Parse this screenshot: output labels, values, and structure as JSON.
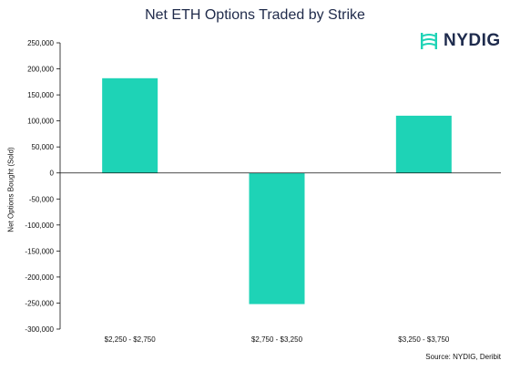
{
  "title": "Net ETH Options Traded by Strike",
  "logo": {
    "text": "NYDIG",
    "icon": "nydig-logo-icon"
  },
  "source": "Source: NYDIG, Deribit",
  "colors": {
    "bar": "#1ed3b6",
    "title": "#1f2a4a",
    "axis": "#111111",
    "logo": "#1e2b4d"
  },
  "chart_data": {
    "type": "bar",
    "title": "Net ETH Options Traded by Strike",
    "categories": [
      "$2,250 - $2,750",
      "$2,750 - $3,250",
      "$3,250 - $3,750"
    ],
    "values": [
      182000,
      -252000,
      110000
    ],
    "xlabel": "",
    "ylabel": "Net Options Bought (Sold)",
    "ylim": [
      -300000,
      250000
    ],
    "yticks": [
      250000,
      200000,
      150000,
      100000,
      50000,
      0,
      -50000,
      -100000,
      -150000,
      -200000,
      -250000,
      -300000
    ],
    "ytick_labels": [
      "250,000",
      "200,000",
      "150,000",
      "100,000",
      "50,000",
      "0",
      "-50,000",
      "-100,000",
      "-150,000",
      "-200,000",
      "-250,000",
      "-300,000"
    ],
    "grid": false,
    "legend": false
  }
}
